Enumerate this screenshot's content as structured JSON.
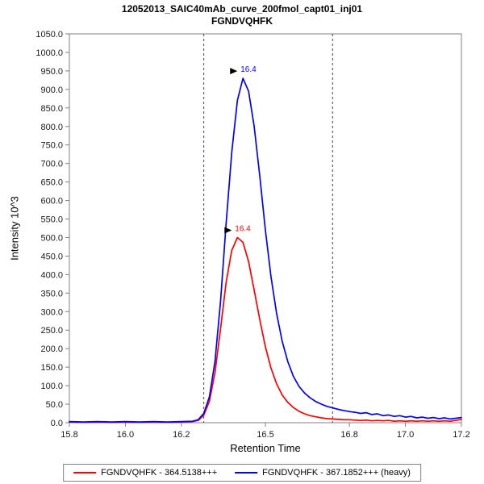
{
  "window": {
    "background": "#ffffff"
  },
  "chart_data": {
    "type": "line",
    "title": "12052013_SAIC40mAb_curve_200fmol_capt01_inj01",
    "subtitle": "FGNDVQHFK",
    "xlabel": "Retention Time",
    "ylabel": "Intensity 10^3",
    "xlim": [
      15.8,
      17.2
    ],
    "ylim": [
      0,
      1050
    ],
    "x_ticks": [
      15.8,
      16.0,
      16.2,
      16.5,
      16.8,
      17.0,
      17.2
    ],
    "y_ticks": [
      0,
      50,
      100,
      150,
      200,
      250,
      300,
      350,
      400,
      450,
      500,
      550,
      600,
      650,
      700,
      750,
      800,
      850,
      900,
      950,
      1000,
      1050
    ],
    "grid": false,
    "legend_position": "bottom",
    "integration_boundaries": [
      16.28,
      16.74
    ],
    "boundary_line_style": "dashed",
    "frame_color": "#808080",
    "x": [
      15.8,
      15.85,
      15.9,
      15.95,
      16.0,
      16.05,
      16.1,
      16.15,
      16.2,
      16.24,
      16.26,
      16.28,
      16.3,
      16.32,
      16.34,
      16.36,
      16.38,
      16.4,
      16.42,
      16.44,
      16.46,
      16.48,
      16.5,
      16.52,
      16.54,
      16.56,
      16.58,
      16.6,
      16.62,
      16.64,
      16.66,
      16.68,
      16.7,
      16.72,
      16.74,
      16.76,
      16.78,
      16.8,
      16.82,
      16.84,
      16.86,
      16.88,
      16.9,
      16.92,
      16.94,
      16.96,
      16.98,
      17.0,
      17.02,
      17.04,
      17.06,
      17.08,
      17.1,
      17.12,
      17.14,
      17.16,
      17.18,
      17.2
    ],
    "series": [
      {
        "name": "FGNDVQHFK - 364.5138+++",
        "color": "#ff0000",
        "peak_label": "16.4",
        "peak_x": 16.4,
        "peak_y": 500,
        "values": [
          2,
          1,
          2,
          1,
          2,
          1,
          2,
          1,
          2,
          3,
          6,
          20,
          58,
          135,
          255,
          380,
          465,
          500,
          487,
          435,
          358,
          278,
          205,
          148,
          105,
          75,
          55,
          41,
          31,
          24,
          19,
          16,
          13,
          11,
          10,
          9,
          8,
          8,
          7,
          6,
          7,
          5,
          6,
          5,
          6,
          4,
          5,
          4,
          5,
          4,
          5,
          4,
          5,
          4,
          5,
          4,
          6,
          9
        ]
      },
      {
        "name": "FGNDVQHFK - 367.1852+++ (heavy)",
        "color": "#0000ff",
        "peak_label": "16.4",
        "peak_x": 16.42,
        "peak_y": 930,
        "values": [
          3,
          2,
          3,
          2,
          3,
          2,
          3,
          2,
          3,
          4,
          8,
          25,
          70,
          165,
          330,
          540,
          730,
          870,
          930,
          895,
          800,
          665,
          520,
          395,
          295,
          220,
          165,
          125,
          98,
          80,
          67,
          57,
          50,
          44,
          40,
          36,
          33,
          30,
          28,
          25,
          27,
          22,
          24,
          19,
          21,
          17,
          19,
          15,
          17,
          13,
          15,
          12,
          14,
          11,
          13,
          10,
          12,
          14
        ]
      }
    ]
  },
  "legend": {
    "items": [
      {
        "label": "FGNDVQHFK - 364.5138+++",
        "color": "#ff0000"
      },
      {
        "label": "FGNDVQHFK - 367.1852+++ (heavy)",
        "color": "#0000ff"
      }
    ]
  }
}
